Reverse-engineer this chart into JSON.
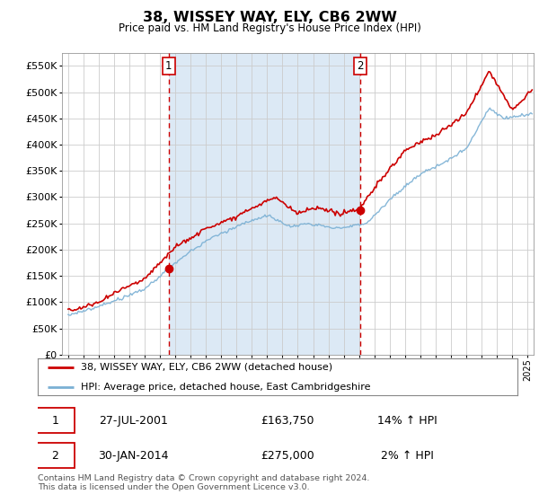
{
  "title": "38, WISSEY WAY, ELY, CB6 2WW",
  "subtitle": "Price paid vs. HM Land Registry's House Price Index (HPI)",
  "background_color": "#ffffff",
  "plot_bg_color": "#ffffff",
  "shade_color": "#dce9f5",
  "grid_color": "#cccccc",
  "ylim": [
    0,
    575000
  ],
  "yticks": [
    0,
    50000,
    100000,
    150000,
    200000,
    250000,
    300000,
    350000,
    400000,
    450000,
    500000,
    550000
  ],
  "xlim_start": 1994.6,
  "xlim_end": 2025.4,
  "sale1_x": 2001.57,
  "sale1_y": 163750,
  "sale1_date": "27-JUL-2001",
  "sale1_price": 163750,
  "sale1_hpi": "14%",
  "sale2_x": 2014.08,
  "sale2_y": 275000,
  "sale2_date": "30-JAN-2014",
  "sale2_price": 275000,
  "sale2_hpi": "2%",
  "legend_line1": "38, WISSEY WAY, ELY, CB6 2WW (detached house)",
  "legend_line2": "HPI: Average price, detached house, East Cambridgeshire",
  "footnote": "Contains HM Land Registry data © Crown copyright and database right 2024.\nThis data is licensed under the Open Government Licence v3.0.",
  "hpi_color": "#7ab0d4",
  "price_color": "#cc0000",
  "marker_color": "#cc0000",
  "shade_alpha": 0.35
}
